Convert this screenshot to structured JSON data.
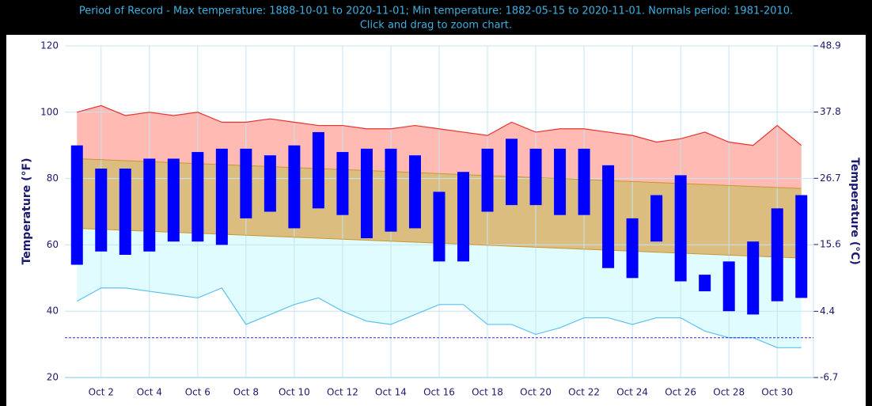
{
  "chart_data": {
    "type": "climate",
    "title": "Period of Record - Max temperature: 1888-10-01 to 2020-11-01; Min temperature: 1882-05-15 to 2020-11-01. Normals period: 1981-2010.",
    "subtitle": "Click and drag to zoom chart.",
    "y_label": "Temperature (°F)",
    "y2_label": "Temperature (°C)",
    "categories": [
      null,
      "Oct 2",
      null,
      "Oct 4",
      null,
      "Oct 6",
      null,
      "Oct 8",
      null,
      "Oct 10",
      null,
      "Oct 12",
      null,
      "Oct 14",
      null,
      "Oct 16",
      null,
      "Oct 18",
      null,
      "Oct 20",
      null,
      "Oct 22",
      null,
      "Oct 24",
      null,
      "Oct 26",
      null,
      "Oct 28",
      null,
      "Oct 30",
      null
    ],
    "ylim": [
      20,
      120
    ],
    "yticks": [
      20,
      40,
      60,
      80,
      100,
      120
    ],
    "y2lim": [
      -6.7,
      48.9
    ],
    "y2ticks": [
      -6.7,
      4.4,
      15.6,
      26.7,
      37.8,
      48.9
    ],
    "grid": true,
    "record_max": {
      "color": "#e8332f",
      "fill": "#ffbab3",
      "values": [
        100,
        102,
        99,
        100,
        99,
        100,
        97,
        97,
        98,
        97,
        96,
        96,
        95,
        95,
        96,
        95,
        94,
        93,
        97,
        94,
        95,
        95,
        94,
        93,
        91,
        92,
        94,
        91,
        90,
        96,
        90
      ]
    },
    "normal_high": {
      "color": "#c8982f",
      "fill": "#dbbd80",
      "values": [
        86.0,
        85.7,
        85.4,
        85.1,
        84.8,
        84.5,
        84.2,
        83.9,
        83.6,
        83.3,
        83.0,
        82.7,
        82.4,
        82.1,
        81.8,
        81.5,
        81.2,
        80.9,
        80.6,
        80.3,
        80.0,
        79.7,
        79.4,
        79.1,
        78.8,
        78.5,
        78.2,
        77.9,
        77.6,
        77.3,
        77.0
      ]
    },
    "normal_low": {
      "color": "#c8982f",
      "fill": "#e0fcff",
      "values": [
        65.0,
        64.7,
        64.4,
        64.1,
        63.8,
        63.5,
        63.2,
        62.9,
        62.6,
        62.3,
        62.0,
        61.7,
        61.4,
        61.1,
        60.8,
        60.5,
        60.2,
        59.9,
        59.6,
        59.3,
        59.0,
        58.7,
        58.4,
        58.1,
        57.8,
        57.5,
        57.2,
        56.9,
        56.6,
        56.3,
        56.0
      ]
    },
    "record_min": {
      "color": "#5bc2f2",
      "values": [
        43,
        47,
        47,
        46,
        45,
        44,
        47,
        36,
        39,
        42,
        44,
        40,
        37,
        36,
        39,
        42,
        42,
        36,
        36,
        33,
        35,
        38,
        38,
        36,
        38,
        38,
        34,
        32,
        32,
        29,
        29
      ]
    },
    "observed": {
      "color": "#0000ff",
      "low": [
        54,
        58,
        57,
        58,
        61,
        61,
        60,
        68,
        70,
        65,
        71,
        69,
        62,
        64,
        65,
        55,
        55,
        70,
        72,
        72,
        69,
        69,
        53,
        50,
        61,
        49,
        46,
        40,
        39,
        43,
        44
      ],
      "high": [
        90,
        83,
        83,
        86,
        86,
        88,
        89,
        89,
        87,
        90,
        94,
        88,
        89,
        89,
        87,
        76,
        82,
        89,
        92,
        89,
        89,
        89,
        84,
        68,
        75,
        81,
        51,
        55,
        61,
        71,
        75
      ]
    },
    "freezing": {
      "color": "#2b2bd6",
      "value": 32
    }
  }
}
